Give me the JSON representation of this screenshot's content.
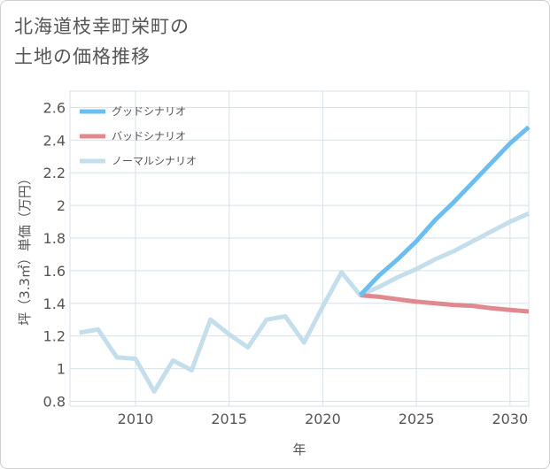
{
  "header": {
    "title_line1": "北海道枝幸町栄町の",
    "title_line2": "土地の価格推移"
  },
  "colors": {
    "good": "#6cbdf0",
    "bad": "#e08a90",
    "normal": "#c5deec",
    "grid": "#d7e2ea"
  },
  "chart_data": {
    "type": "line",
    "title": "北海道枝幸町栄町の土地の価格推移",
    "xlabel": "年",
    "ylabel": "坪（3.3㎡）単価（万円）",
    "xlim": [
      2006.5,
      2031
    ],
    "ylim": [
      0.77,
      2.7
    ],
    "x_ticks": [
      2010,
      2015,
      2020,
      2025,
      2030
    ],
    "y_ticks": [
      0.8,
      1,
      1.2,
      1.4,
      1.6,
      1.8,
      2,
      2.2,
      2.4,
      2.6
    ],
    "x_tick_labels": [
      "2010",
      "2015",
      "2020",
      "2025",
      "2030"
    ],
    "y_tick_labels": [
      "0.8",
      "1",
      "1.2",
      "1.4",
      "1.6",
      "1.8",
      "2",
      "2.2",
      "2.4",
      "2.6"
    ],
    "legend": [
      "グッドシナリオ",
      "バッドシナリオ",
      "ノーマルシナリオ"
    ],
    "series": [
      {
        "name": "グッドシナリオ",
        "x": [
          2022,
          2023,
          2024,
          2025,
          2026,
          2027,
          2028,
          2029,
          2030,
          2031
        ],
        "y": [
          1.45,
          1.57,
          1.67,
          1.78,
          1.91,
          2.02,
          2.14,
          2.26,
          2.38,
          2.48
        ]
      },
      {
        "name": "バッドシナリオ",
        "x": [
          2022,
          2023,
          2024,
          2025,
          2026,
          2027,
          2028,
          2029,
          2030,
          2031
        ],
        "y": [
          1.45,
          1.44,
          1.425,
          1.41,
          1.4,
          1.39,
          1.385,
          1.37,
          1.36,
          1.35
        ]
      },
      {
        "name": "ノーマルシナリオ",
        "x": [
          2007,
          2008,
          2009,
          2010,
          2011,
          2012,
          2013,
          2014,
          2015,
          2016,
          2017,
          2018,
          2019,
          2020,
          2021,
          2022,
          2023,
          2024,
          2025,
          2026,
          2027,
          2028,
          2029,
          2030,
          2031
        ],
        "y": [
          1.22,
          1.24,
          1.07,
          1.06,
          0.86,
          1.05,
          0.99,
          1.3,
          1.21,
          1.13,
          1.3,
          1.32,
          1.16,
          1.38,
          1.59,
          1.45,
          1.5,
          1.56,
          1.61,
          1.67,
          1.72,
          1.78,
          1.84,
          1.9,
          1.95
        ]
      }
    ]
  }
}
